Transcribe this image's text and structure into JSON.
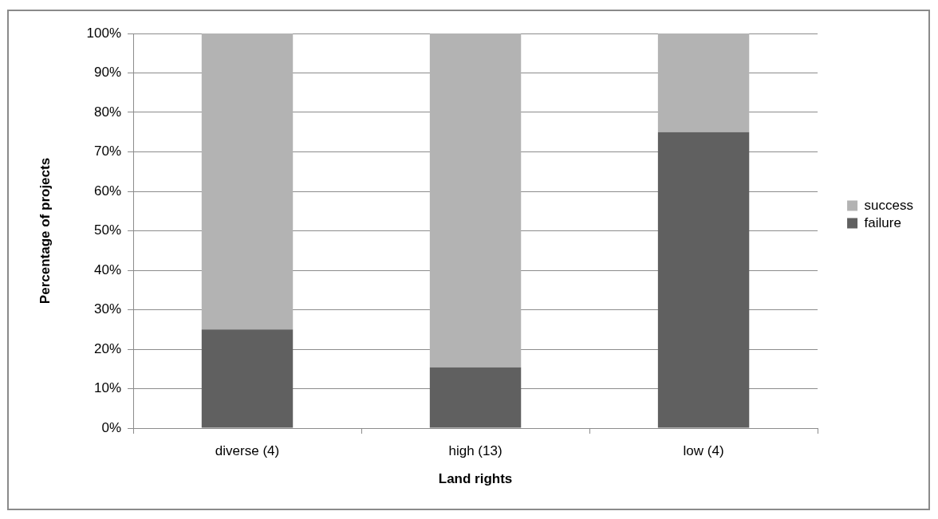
{
  "chart_data": {
    "type": "bar",
    "stacked": true,
    "xlabel": "Land rights",
    "ylabel": "Percentage of projects",
    "categories": [
      "diverse (4)",
      "high (13)",
      "low (4)"
    ],
    "series": [
      {
        "name": "failure",
        "color": "#606060",
        "values": [
          25,
          15.4,
          75
        ]
      },
      {
        "name": "success",
        "color": "#b3b3b3",
        "values": [
          75,
          84.6,
          25
        ]
      }
    ],
    "ylim": [
      0,
      100
    ],
    "yticks": [
      {
        "value": 0,
        "label": "0%"
      },
      {
        "value": 10,
        "label": "10%"
      },
      {
        "value": 20,
        "label": "20%"
      },
      {
        "value": 30,
        "label": "30%"
      },
      {
        "value": 40,
        "label": "40%"
      },
      {
        "value": 50,
        "label": "50%"
      },
      {
        "value": 60,
        "label": "60%"
      },
      {
        "value": 70,
        "label": "70%"
      },
      {
        "value": 80,
        "label": "80%"
      },
      {
        "value": 90,
        "label": "90%"
      },
      {
        "value": 100,
        "label": "100%"
      }
    ],
    "grid": "y",
    "legend": "right"
  }
}
